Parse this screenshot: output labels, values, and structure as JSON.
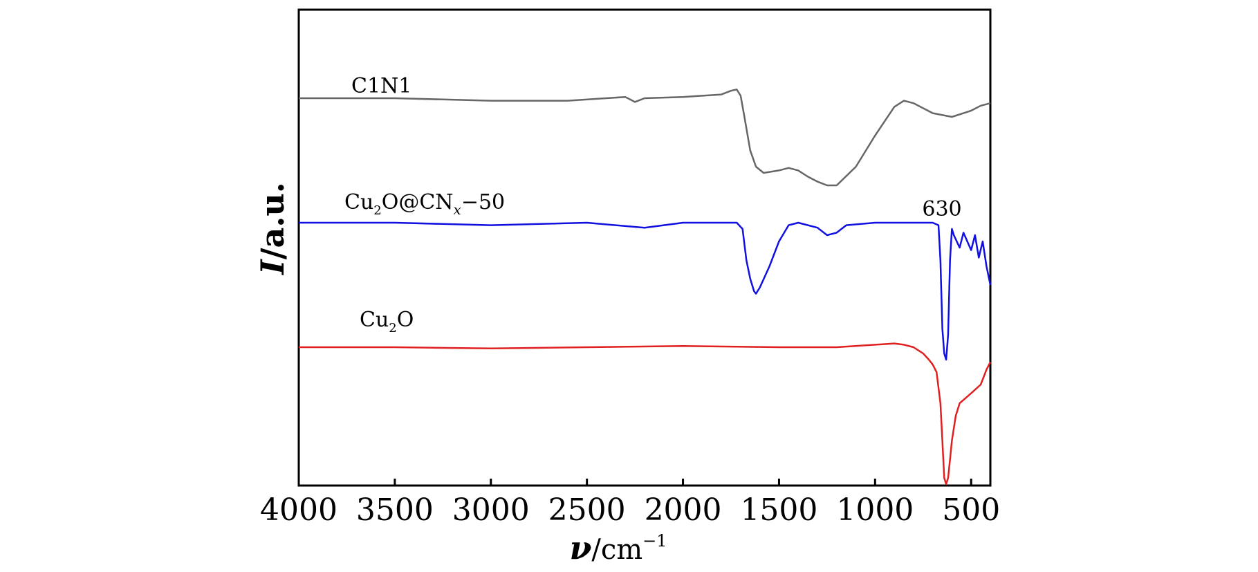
{
  "chart_data": {
    "type": "line",
    "xlabel_symbol": "ν",
    "xlabel_unit": "/cm",
    "xlabel_exp": "−1",
    "ylabel_symbol": "I",
    "ylabel_unit": "/a.u.",
    "xlim": [
      4000,
      400
    ],
    "x_ticks": [
      4000,
      3500,
      3000,
      2500,
      2000,
      1500,
      1000,
      500
    ],
    "x_tick_labels": [
      "4000",
      "3500",
      "3000",
      "2500",
      "2000",
      "1500",
      "1000",
      "500"
    ],
    "y_ticks_shown": false,
    "annotation": "630",
    "series": [
      {
        "name_parts": [
          "C1N1"
        ],
        "color": "#666666",
        "offset": 2.0,
        "x": [
          4000,
          3500,
          3000,
          2600,
          2300,
          2250,
          2200,
          2000,
          1800,
          1750,
          1720,
          1700,
          1680,
          1650,
          1620,
          1580,
          1500,
          1450,
          1400,
          1350,
          1300,
          1250,
          1200,
          1100,
          1000,
          900,
          850,
          800,
          700,
          600,
          500,
          450,
          400
        ],
        "y": [
          0.0,
          0.0,
          -0.02,
          -0.02,
          0.01,
          -0.03,
          0.0,
          0.01,
          0.03,
          0.06,
          0.07,
          0.02,
          -0.15,
          -0.42,
          -0.55,
          -0.6,
          -0.58,
          -0.56,
          -0.58,
          -0.63,
          -0.67,
          -0.7,
          -0.7,
          -0.55,
          -0.3,
          -0.07,
          -0.02,
          -0.04,
          -0.12,
          -0.15,
          -0.1,
          -0.06,
          -0.04
        ]
      },
      {
        "name_parts": [
          "Cu",
          "2",
          "O@CN",
          "x",
          "−50"
        ],
        "color": "#1010e0",
        "offset": 1.0,
        "x": [
          4000,
          3500,
          3000,
          2500,
          2200,
          2000,
          1800,
          1720,
          1690,
          1670,
          1650,
          1630,
          1620,
          1600,
          1550,
          1500,
          1450,
          1400,
          1300,
          1250,
          1200,
          1150,
          1000,
          800,
          700,
          670,
          660,
          650,
          640,
          630,
          620,
          610,
          600,
          590,
          560,
          540,
          500,
          480,
          460,
          440,
          420,
          400
        ],
        "y": [
          0.0,
          0.0,
          -0.02,
          0.0,
          -0.04,
          0.0,
          0.0,
          0.0,
          -0.05,
          -0.3,
          -0.45,
          -0.55,
          -0.57,
          -0.52,
          -0.35,
          -0.15,
          -0.02,
          0.0,
          -0.04,
          -0.1,
          -0.08,
          -0.02,
          0.0,
          0.0,
          0.0,
          -0.02,
          -0.3,
          -0.85,
          -1.05,
          -1.1,
          -0.9,
          -0.3,
          -0.05,
          -0.1,
          -0.2,
          -0.08,
          -0.22,
          -0.1,
          -0.28,
          -0.15,
          -0.35,
          -0.5
        ]
      },
      {
        "name_parts": [
          "Cu",
          "2",
          "O"
        ],
        "color": "#e02020",
        "offset": 0.0,
        "x": [
          4000,
          3500,
          3000,
          2500,
          2000,
          1500,
          1200,
          1000,
          900,
          850,
          800,
          750,
          720,
          700,
          680,
          660,
          650,
          640,
          630,
          620,
          610,
          600,
          580,
          560,
          500,
          450,
          420,
          400
        ],
        "y": [
          0.0,
          0.0,
          -0.01,
          0.0,
          0.01,
          0.0,
          0.0,
          0.02,
          0.03,
          0.02,
          0.0,
          -0.05,
          -0.1,
          -0.14,
          -0.2,
          -0.45,
          -0.75,
          -1.05,
          -1.1,
          -1.05,
          -0.9,
          -0.75,
          -0.55,
          -0.45,
          -0.37,
          -0.3,
          -0.18,
          -0.12
        ]
      }
    ]
  }
}
